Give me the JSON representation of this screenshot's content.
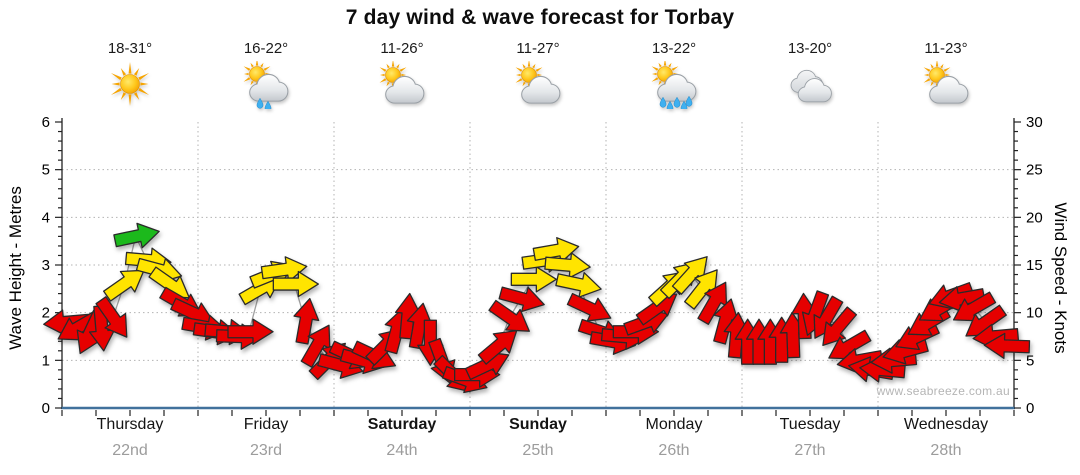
{
  "title": "7 day wind & wave forecast for Torbay",
  "watermark": "www.seabreeze.com.au",
  "forecast_days": [
    {
      "name": "Thursday",
      "date": "22nd",
      "temp": "18-31°",
      "icon": "sunny",
      "weekend": false
    },
    {
      "name": "Friday",
      "date": "23rd",
      "temp": "16-22°",
      "icon": "sun-cloud-rain",
      "weekend": false
    },
    {
      "name": "Saturday",
      "date": "24th",
      "temp": "11-26°",
      "icon": "sun-cloud",
      "weekend": true
    },
    {
      "name": "Sunday",
      "date": "25th",
      "temp": "11-27°",
      "icon": "sun-cloud",
      "weekend": true
    },
    {
      "name": "Monday",
      "date": "26th",
      "temp": "13-22°",
      "icon": "sun-cloud-showers",
      "weekend": false
    },
    {
      "name": "Tuesday",
      "date": "27th",
      "temp": "13-20°",
      "icon": "cloudy",
      "weekend": false
    },
    {
      "name": "Wednesday",
      "date": "28th",
      "temp": "11-23°",
      "icon": "sun-cloud",
      "weekend": false
    }
  ],
  "chart_data": {
    "type": "wind-arrow-timeseries",
    "title": "7 day wind & wave forecast for Torbay",
    "x_axis": {
      "days": [
        "Thursday 22nd",
        "Friday 23rd",
        "Saturday 24th",
        "Sunday 25th",
        "Monday 26th",
        "Tuesday 27th",
        "Wednesday 28th"
      ],
      "arrows_per_day": 12,
      "interval_hours": 2
    },
    "y_left": {
      "label": "Wave Height - Metres",
      "min": 0,
      "max": 6,
      "ticks": [
        0,
        1,
        2,
        3,
        4,
        5,
        6
      ],
      "minor_step": 0.2
    },
    "y_right": {
      "label": "Wind Speed - Knots",
      "min": 0,
      "max": 30,
      "ticks": [
        0,
        5,
        10,
        15,
        20,
        25,
        30
      ],
      "minor_step": 1
    },
    "grid": {
      "h_lines_metres": [
        1,
        2,
        3,
        4,
        5
      ],
      "v_lines": "day-boundaries",
      "style": "dotted"
    },
    "arrow_colors": {
      "red": "#e60000",
      "yellow": "#ffe400",
      "green": "#1db91d",
      "red_below_kn": 12.5,
      "yellow_below_kn": 17.5
    },
    "dir_convention": "degrees clockwise from east: 0=pointing right(E), 90=down(S), -90=up(N), 180=left(W)",
    "series": [
      {
        "day": "Thursday",
        "knots": [
          9,
          8.5,
          8,
          8.5,
          9.5,
          13,
          18,
          15.5,
          14.5,
          13,
          11,
          10
        ],
        "dir": [
          175,
          150,
          115,
          85,
          55,
          -35,
          -12,
          5,
          15,
          35,
          30,
          25
        ]
      },
      {
        "day": "Friday",
        "knots": [
          8.5,
          8,
          8,
          7.5,
          8,
          12.5,
          14,
          14.5,
          13,
          9,
          6.5,
          5
        ],
        "dir": [
          10,
          8,
          5,
          2,
          0,
          -30,
          -22,
          -8,
          0,
          -80,
          -60,
          -45
        ]
      },
      {
        "day": "Saturday",
        "knots": [
          4.5,
          5.5,
          5,
          5.5,
          6.5,
          8,
          9.5,
          8.5,
          7,
          5,
          3.5,
          3
        ],
        "dir": [
          15,
          25,
          15,
          25,
          -45,
          -75,
          -85,
          -80,
          90,
          70,
          45,
          20
        ]
      },
      {
        "day": "Sunday",
        "knots": [
          3.5,
          4.5,
          6.5,
          9.5,
          11.5,
          13.5,
          15.5,
          16.5,
          15,
          13,
          10.5,
          8
        ],
        "dir": [
          0,
          -25,
          -40,
          35,
          15,
          0,
          -8,
          -10,
          5,
          12,
          25,
          18
        ]
      },
      {
        "day": "Monday",
        "knots": [
          7,
          7.5,
          8,
          9,
          10.5,
          12.6,
          13.5,
          14,
          12.5,
          11,
          9,
          7.5
        ],
        "dir": [
          10,
          5,
          0,
          -20,
          -35,
          -42,
          -45,
          -48,
          -52,
          -60,
          -75,
          -85
        ]
      },
      {
        "day": "Tuesday",
        "knots": [
          6.8,
          6.8,
          6.8,
          7,
          7.5,
          9.5,
          10,
          9.5,
          8.5,
          6.5,
          5,
          4
        ],
        "dir": [
          -90,
          -90,
          -90,
          -90,
          -92,
          -92,
          110,
          120,
          130,
          150,
          170,
          190
        ]
      },
      {
        "day": "Wednesday",
        "knots": [
          4,
          5,
          6,
          7.5,
          9,
          10.5,
          11.8,
          11.5,
          10.5,
          9,
          7.5,
          6.5
        ],
        "dir": [
          185,
          175,
          165,
          155,
          150,
          150,
          160,
          170,
          150,
          145,
          175,
          182
        ]
      }
    ],
    "connector_line_color": "#a0a0a0",
    "baseline_color": "#41719c"
  }
}
